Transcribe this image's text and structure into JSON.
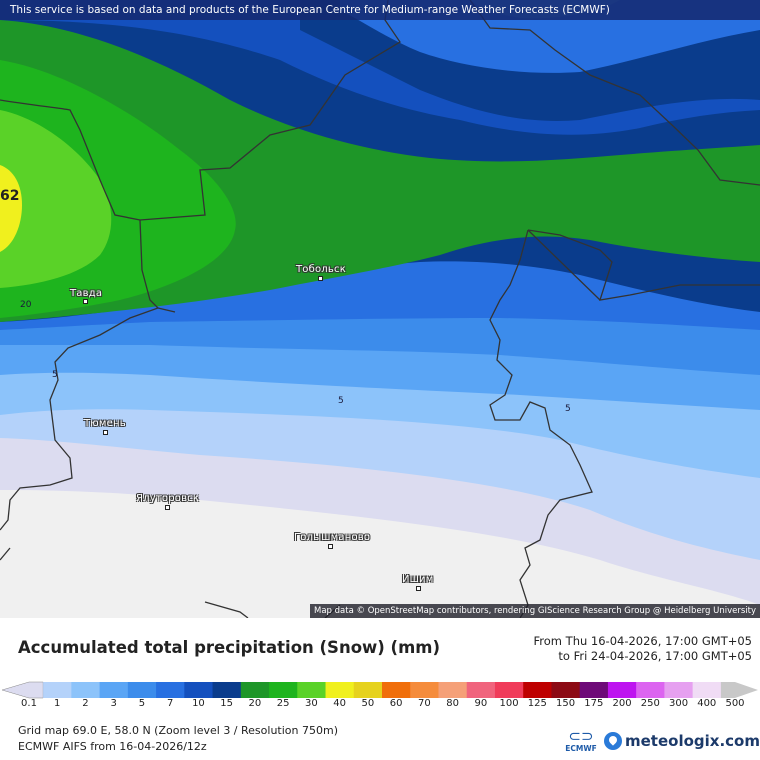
{
  "banner": {
    "text": "This service is based on data and products of the European Centre for Medium-range Weather Forecasts (ECMWF)"
  },
  "map": {
    "attribution": "Map data © OpenStreetMap contributors, rendering GIScience Research Group @ Heidelberg University",
    "max_value_label": "62",
    "cities": [
      {
        "name": "Тобольск"
      },
      {
        "name": "Тавда"
      },
      {
        "name": "Тюмень"
      },
      {
        "name": "Ялуторовск"
      },
      {
        "name": "Голышманово"
      },
      {
        "name": "Ишим"
      }
    ],
    "contour_labels": [
      "20",
      "5",
      "5",
      "5"
    ]
  },
  "legend": {
    "title": "Accumulated total precipitation (Snow) (mm)",
    "from": "From Thu 16-04-2026, 17:00 GMT+05",
    "to": "to Fri 24-04-2026, 17:00 GMT+05",
    "ticks": [
      "0.1",
      "1",
      "2",
      "3",
      "5",
      "7",
      "10",
      "15",
      "20",
      "25",
      "30",
      "40",
      "50",
      "60",
      "70",
      "80",
      "90",
      "100",
      "125",
      "150",
      "175",
      "200",
      "250",
      "300",
      "400",
      "500"
    ],
    "colors": [
      "#dcdcf0",
      "#b4d2fa",
      "#8cc3fa",
      "#5aa5f5",
      "#3c8ceb",
      "#2870e1",
      "#1450be",
      "#0a3c8c",
      "#1e9628",
      "#1eb41e",
      "#5ad228",
      "#f0f01e",
      "#e6d21e",
      "#f06e0a",
      "#f58c3c",
      "#f5a078",
      "#f0647d",
      "#f03c5a",
      "#be0000",
      "#8c0a14",
      "#6e0a78",
      "#be14f0",
      "#dc64f0",
      "#e6a0f0",
      "#f0dcf5",
      "#c8c8c8"
    ],
    "grid_info": "Grid map 69.0 E, 58.0 N (Zoom level 3 / Resolution 750m)",
    "model_info": "ECMWF AIFS from  16-04-2026/12z"
  },
  "logos": {
    "ecmwf": "ECMWF",
    "meteologix": "meteologix.com"
  }
}
